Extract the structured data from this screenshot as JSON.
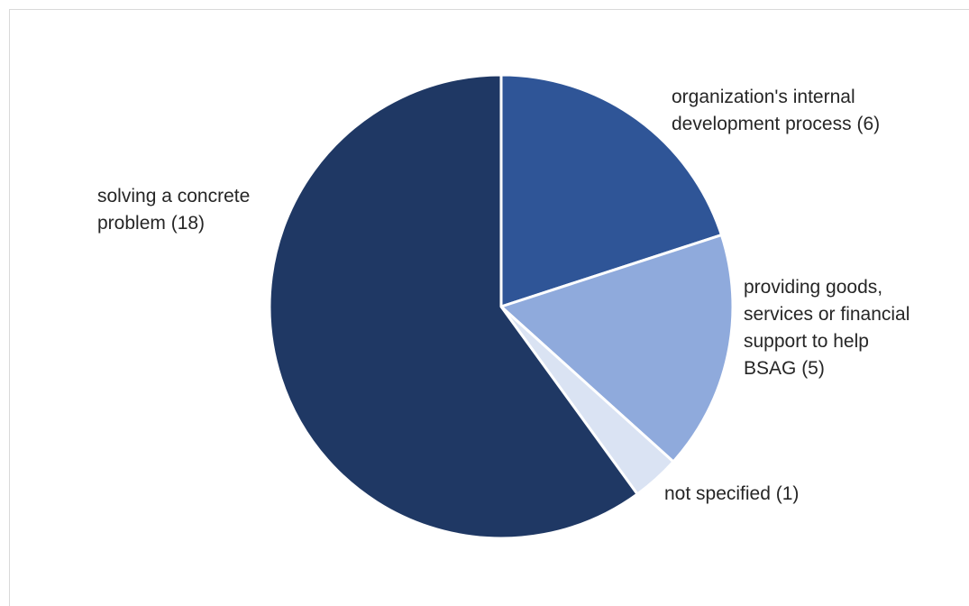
{
  "chart_data": {
    "type": "pie",
    "slices": [
      {
        "label_lines": [
          "organization's internal",
          "development process (6)"
        ],
        "value": 6,
        "color": "#2f5597"
      },
      {
        "label_lines": [
          "providing goods,",
          "services or financial",
          "support to help",
          "BSAG (5)"
        ],
        "value": 5,
        "color": "#8faadc"
      },
      {
        "label_lines": [
          "not specified (1)"
        ],
        "value": 1,
        "color": "#dae3f3"
      },
      {
        "label_lines": [
          "solving a concrete",
          "problem (18)"
        ],
        "value": 18,
        "color": "#1f3864"
      }
    ],
    "start_angle_deg": 0,
    "direction": "clockwise",
    "legend": "none",
    "data_labels": "outside"
  }
}
